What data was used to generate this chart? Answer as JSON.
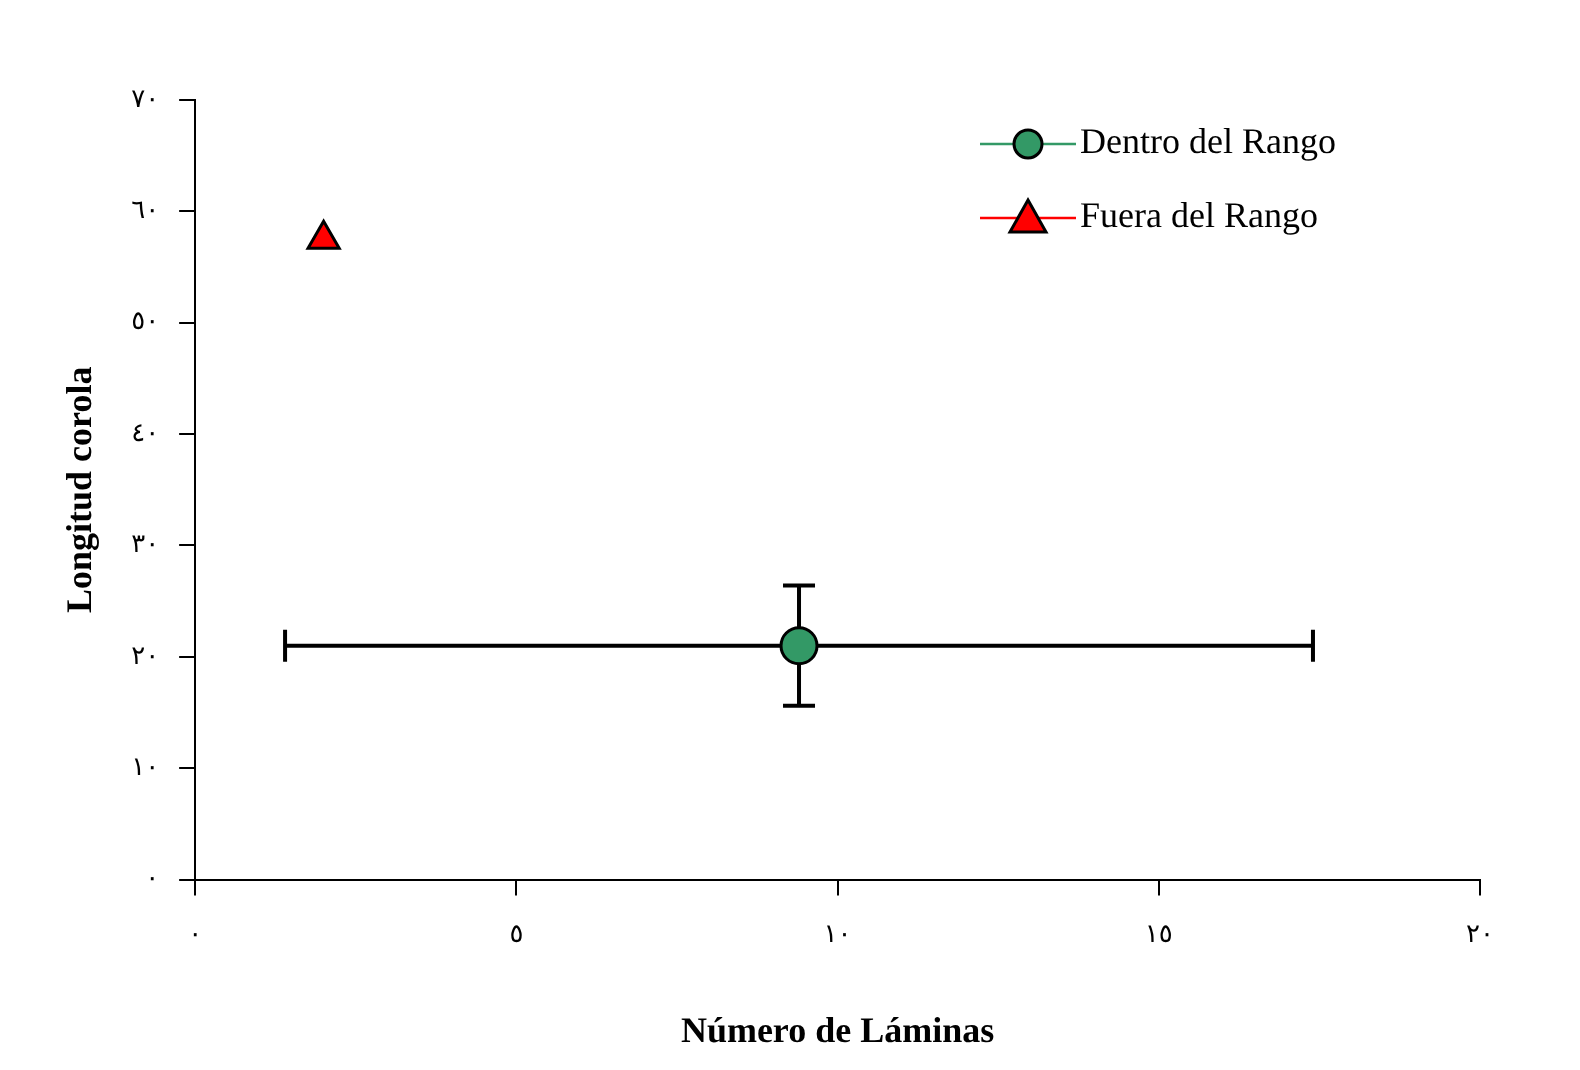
{
  "chart_data": {
    "type": "scatter",
    "xlabel": "Número de Láminas",
    "ylabel": "Longitud corola",
    "series": [
      {
        "name": "Dentro del Rango",
        "color": "#339966",
        "marker": "circle",
        "x": [
          9.4
        ],
        "values": [
          21.0
        ],
        "errors": [
          5.4
        ],
        "xerrors": [
          8
        ]
      },
      {
        "name": "Fuera del Rango",
        "color": "#ff0000",
        "marker": "triangle",
        "x": [
          2.0
        ],
        "values": [
          57.5
        ]
      }
    ],
    "xlim": [
      0,
      20
    ],
    "xticks": [
      {
        "value": 0,
        "label": "٠"
      },
      {
        "value": 5,
        "label": "٥"
      },
      {
        "value": 10,
        "label": "١٠"
      },
      {
        "value": 15,
        "label": "١٥"
      },
      {
        "value": 20,
        "label": "٢٠"
      }
    ],
    "ylim": [
      0,
      70
    ],
    "yticks": [
      {
        "value": 0,
        "label": "٠"
      },
      {
        "value": 10,
        "label": "١٠"
      },
      {
        "value": 20,
        "label": "٢٠"
      },
      {
        "value": 30,
        "label": "٣٠"
      },
      {
        "value": 40,
        "label": "٤٠"
      },
      {
        "value": 50,
        "label": "٥٠"
      },
      {
        "value": 60,
        "label": "٦٠"
      },
      {
        "value": 70,
        "label": "٧٠"
      }
    ],
    "grid": false,
    "legend": "top right"
  }
}
